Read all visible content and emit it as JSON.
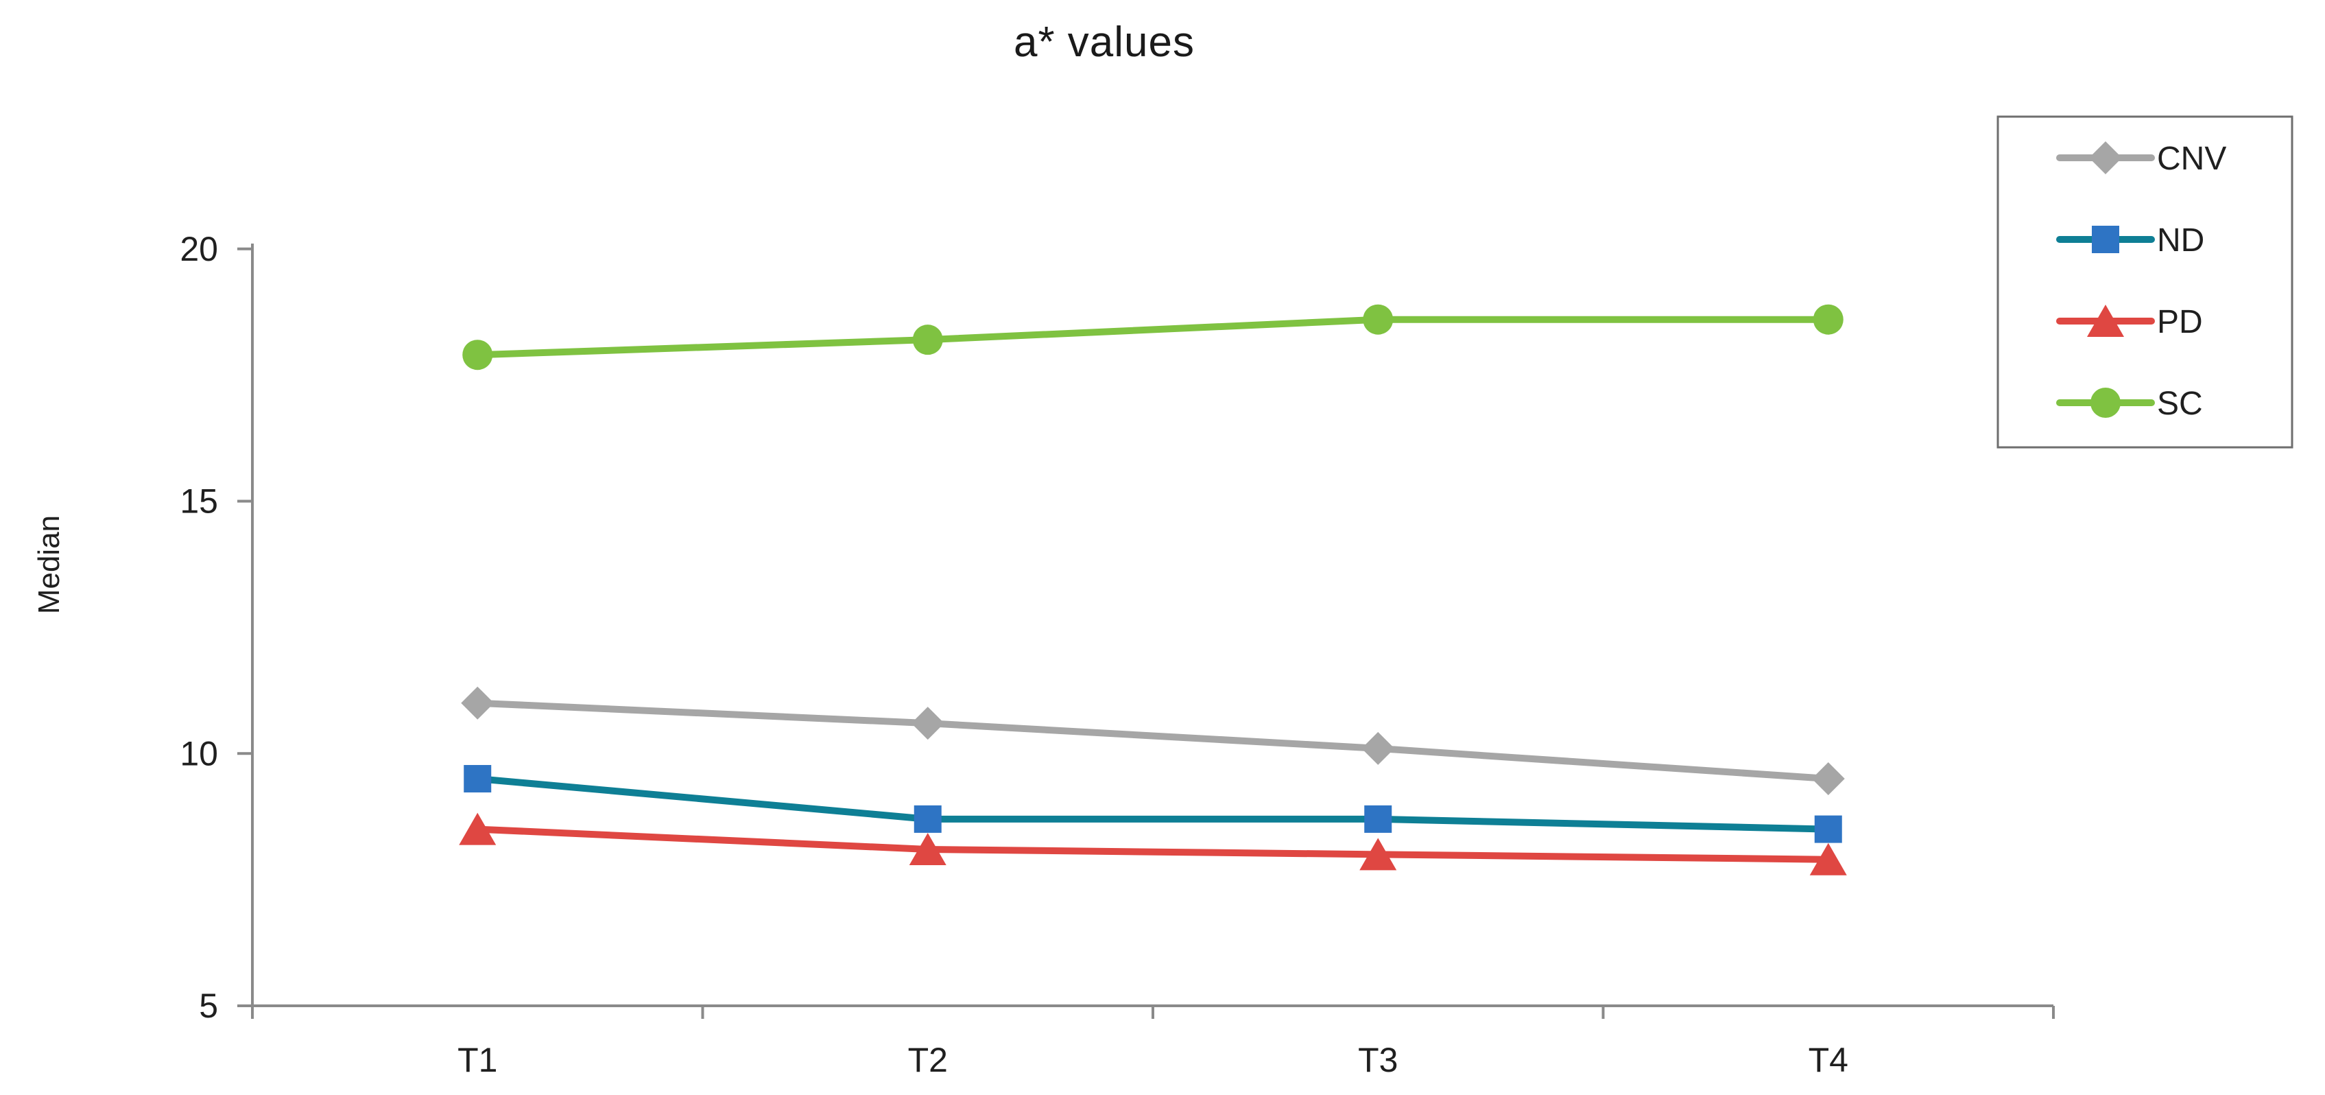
{
  "chart_data": {
    "type": "line",
    "title": "a* values",
    "xlabel": "",
    "ylabel": "Median",
    "categories": [
      "T1",
      "T2",
      "T3",
      "T4"
    ],
    "series": [
      {
        "name": "CNV",
        "marker": "diamond",
        "line_color": "#A6A6A6",
        "marker_color": "#A6A6A6",
        "values": [
          11.0,
          10.6,
          10.1,
          9.5
        ]
      },
      {
        "name": "ND",
        "marker": "square",
        "line_color": "#0E7F95",
        "marker_color": "#2E74C4",
        "values": [
          9.5,
          8.7,
          8.7,
          8.5
        ]
      },
      {
        "name": "PD",
        "marker": "triangle",
        "line_color": "#DF4742",
        "marker_color": "#DF4742",
        "values": [
          8.5,
          8.1,
          8.0,
          7.9
        ]
      },
      {
        "name": "SC",
        "marker": "circle",
        "line_color": "#7FC241",
        "marker_color": "#7FC241",
        "values": [
          17.9,
          18.2,
          18.6,
          18.6
        ]
      }
    ],
    "yticks": [
      5,
      10,
      15,
      20
    ],
    "ylim": [
      5,
      20.6
    ],
    "grid": false,
    "legend_position": "right",
    "axis_color": "#8A8A8A",
    "text_color": "#1F1F1F"
  }
}
